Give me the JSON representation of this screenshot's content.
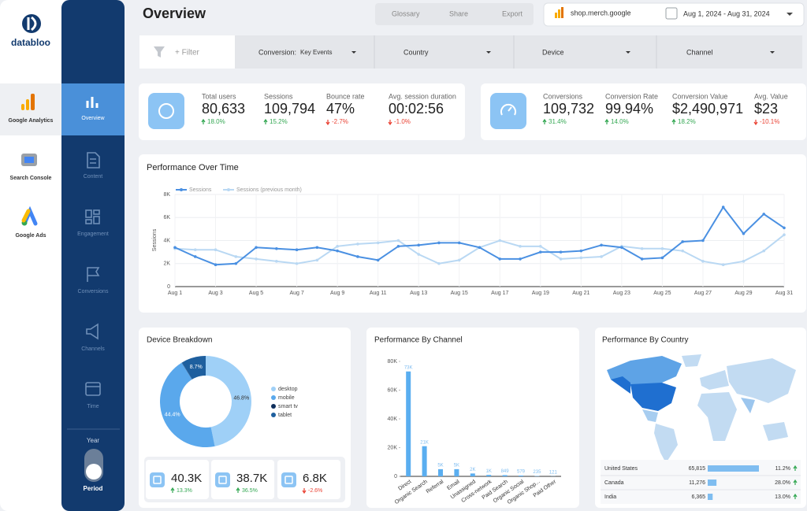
{
  "brand": "databloo",
  "sources": [
    "Google Analytics",
    "Search Console",
    "Google Ads"
  ],
  "nav": [
    "Overview",
    "Content",
    "Engagement",
    "Conversions",
    "Channels",
    "Time"
  ],
  "toggle": {
    "top": "Year",
    "bottom": "Period"
  },
  "header": {
    "title": "Overview",
    "buttons": [
      "Glossary",
      "Share",
      "Export"
    ],
    "property": "shop.merch.google",
    "date_range": "Aug 1, 2024 - Aug 31, 2024"
  },
  "filters": {
    "add": "+ Filter",
    "conversion_label": "Conversion:",
    "conversion_value": "Key Events",
    "dropdowns": [
      "Country",
      "Device",
      "Channel"
    ]
  },
  "kpis": {
    "traffic": [
      {
        "label": "Total users",
        "value": "80,633",
        "change": "18.0%",
        "trend": "up"
      },
      {
        "label": "Sessions",
        "value": "109,794",
        "change": "15.2%",
        "trend": "up"
      },
      {
        "label": "Bounce rate",
        "value": "47%",
        "change": "-2.7%",
        "trend": "down"
      },
      {
        "label": "Avg. session duration",
        "value": "00:02:56",
        "change": "-1.0%",
        "trend": "down"
      }
    ],
    "conversions": [
      {
        "label": "Conversions",
        "value": "109,732",
        "change": "31.4%",
        "trend": "up"
      },
      {
        "label": "Conversion Rate",
        "value": "99.94%",
        "change": "14.0%",
        "trend": "up"
      },
      {
        "label": "Conversion Value",
        "value": "$2,490,971",
        "change": "18.2%",
        "trend": "up"
      },
      {
        "label": "Avg. Value",
        "value": "$23",
        "change": "-10.1%",
        "trend": "down"
      }
    ]
  },
  "chart_data": [
    {
      "type": "line",
      "title": "Performance Over Time",
      "y_label": "Sessions",
      "categories": [
        "Aug 1",
        null,
        "Aug 3",
        null,
        "Aug 5",
        null,
        "Aug 7",
        null,
        "Aug 9",
        null,
        "Aug 11",
        null,
        "Aug 13",
        null,
        "Aug 15",
        null,
        "Aug 17",
        null,
        "Aug 19",
        null,
        "Aug 21",
        null,
        "Aug 23",
        null,
        "Aug 25",
        null,
        "Aug 27",
        null,
        "Aug 29",
        null,
        "Aug 31"
      ],
      "series": [
        {
          "name": "Sessions",
          "color": "#4a90e2",
          "values": [
            3400,
            2600,
            1900,
            2000,
            3400,
            3300,
            3200,
            3400,
            3100,
            2600,
            2300,
            3500,
            3600,
            3800,
            3800,
            3400,
            2400,
            2400,
            3000,
            3000,
            3100,
            3600,
            3400,
            2400,
            2500,
            3900,
            4000,
            6900,
            4600,
            6300,
            5100
          ]
        },
        {
          "name": "Sessions (previous month)",
          "color": "#b9d8f3",
          "values": [
            3300,
            3200,
            3200,
            2600,
            2400,
            2200,
            2000,
            2300,
            3500,
            3700,
            3800,
            4000,
            2800,
            2000,
            2300,
            3400,
            4000,
            3500,
            3500,
            2400,
            2500,
            2600,
            3500,
            3300,
            3300,
            3100,
            2200,
            1900,
            2200,
            3100,
            4500
          ]
        }
      ],
      "ylim": [
        0,
        8000
      ],
      "yticks": [
        0,
        {
          "value": 2000,
          "label": "2K"
        },
        {
          "value": 4000,
          "label": "4K"
        },
        {
          "value": 6000,
          "label": "6K"
        },
        {
          "value": 8000,
          "label": "8K"
        }
      ],
      "grid": true
    },
    {
      "type": "pie",
      "title": "Device Breakdown",
      "categories": [
        "desktop",
        "mobile",
        "smart tv",
        "tablet"
      ],
      "values": [
        46.8,
        44.4,
        0.1,
        8.7
      ],
      "value_labels": [
        "46.8%",
        "44.4%",
        null,
        "8.7%"
      ],
      "colors": [
        "#9fd0f7",
        "#5aa8ec",
        "#0f2f5c",
        "#1e5f9e"
      ]
    },
    {
      "type": "bar",
      "title": "Performance By Channel",
      "color": "#5aaef0",
      "categories": [
        "Direct",
        "Organic Search",
        "Referral",
        "Email",
        "Unassigned",
        "Cross-network",
        "Paid Search",
        "Organic Social",
        "Organic Shop...",
        "Paid Other"
      ],
      "values": [
        73000,
        21000,
        5000,
        5000,
        2000,
        1000,
        849,
        579,
        235,
        121
      ],
      "value_labels": [
        "73K",
        "21K",
        "5K",
        "5K",
        "2K",
        "1K",
        "849",
        "579",
        "235",
        "121"
      ],
      "ylim": [
        0,
        80000
      ],
      "yticks": [
        0,
        {
          "value": 20000,
          "label": "20K"
        },
        {
          "value": 40000,
          "label": "40K"
        },
        {
          "value": 60000,
          "label": "60K"
        },
        {
          "value": 80000,
          "label": "80K"
        }
      ]
    }
  ],
  "device_kpis": [
    {
      "value": "40.3K",
      "change": "13.3%",
      "trend": "up"
    },
    {
      "value": "38.7K",
      "change": "36.5%",
      "trend": "up"
    },
    {
      "value": "6.8K",
      "change": "-2.6%",
      "trend": "down"
    }
  ],
  "country": {
    "title": "Performance By Country",
    "rows": [
      {
        "name": "United States",
        "value": 65815,
        "label": "65,815",
        "change": "11.2%",
        "trend": "up"
      },
      {
        "name": "Canada",
        "value": 11276,
        "label": "11,276",
        "change": "28.0%",
        "trend": "up"
      },
      {
        "name": "India",
        "value": 6365,
        "label": "6,365",
        "change": "13.0%",
        "trend": "up"
      }
    ]
  }
}
